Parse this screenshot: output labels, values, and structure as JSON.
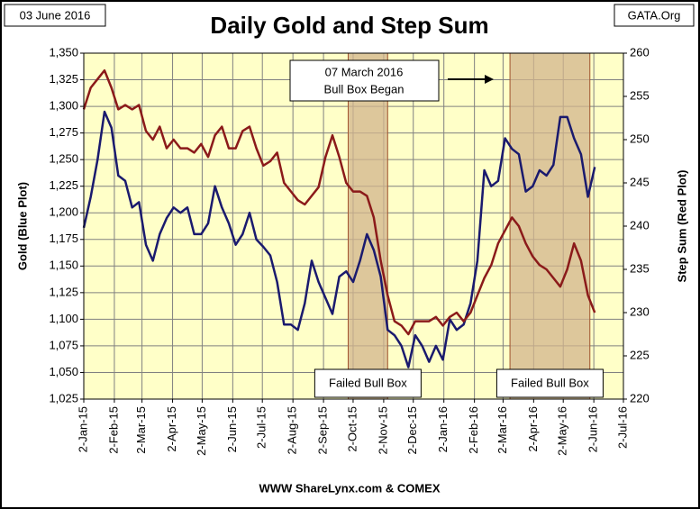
{
  "chart_data": {
    "type": "line",
    "title": "Daily Gold and Step Sum",
    "date_label": "03 June 2016",
    "source_label": "GATA.Org",
    "footer": "WWW ShareLynx.com & COMEX",
    "ylabel": "Gold   (Blue Plot)",
    "y2label": "Step Sum   (Red Plot)",
    "annotation": [
      "07 March 2016",
      "Bull Box Began"
    ],
    "bull_boxes": [
      {
        "start": "2015-09-27",
        "end": "2015-11-06",
        "label": "Failed Bull Box"
      },
      {
        "start": "2016-03-09",
        "end": "2016-05-29",
        "label": "Failed Bull Box"
      }
    ],
    "xlim": [
      "2015-01-02",
      "2016-07-02"
    ],
    "xticks": [
      {
        "value": "2015-01-02",
        "label": "2-Jan-15"
      },
      {
        "value": "2015-02-02",
        "label": "2-Feb-15"
      },
      {
        "value": "2015-03-02",
        "label": "2-Mar-15"
      },
      {
        "value": "2015-04-02",
        "label": "2-Apr-15"
      },
      {
        "value": "2015-05-02",
        "label": "2-May-15"
      },
      {
        "value": "2015-06-02",
        "label": "2-Jun-15"
      },
      {
        "value": "2015-07-02",
        "label": "2-Jul-15"
      },
      {
        "value": "2015-08-02",
        "label": "2-Aug-15"
      },
      {
        "value": "2015-09-02",
        "label": "2-Sep-15"
      },
      {
        "value": "2015-10-02",
        "label": "2-Oct-15"
      },
      {
        "value": "2015-11-02",
        "label": "2-Nov-15"
      },
      {
        "value": "2015-12-02",
        "label": "2-Dec-15"
      },
      {
        "value": "2016-01-02",
        "label": "2-Jan-16"
      },
      {
        "value": "2016-02-02",
        "label": "2-Feb-16"
      },
      {
        "value": "2016-03-02",
        "label": "2-Mar-16"
      },
      {
        "value": "2016-04-02",
        "label": "2-Apr-16"
      },
      {
        "value": "2016-05-02",
        "label": "2-May-16"
      },
      {
        "value": "2016-06-02",
        "label": "2-Jun-16"
      },
      {
        "value": "2016-07-02",
        "label": "2-Jul-16"
      }
    ],
    "ylim": [
      1025,
      1350
    ],
    "yticks": [
      {
        "value": 1025,
        "label": "1,025"
      },
      {
        "value": 1050,
        "label": "1,050"
      },
      {
        "value": 1075,
        "label": "1,075"
      },
      {
        "value": 1100,
        "label": "1,100"
      },
      {
        "value": 1125,
        "label": "1,125"
      },
      {
        "value": 1150,
        "label": "1,150"
      },
      {
        "value": 1175,
        "label": "1,175"
      },
      {
        "value": 1200,
        "label": "1,200"
      },
      {
        "value": 1225,
        "label": "1,225"
      },
      {
        "value": 1250,
        "label": "1,250"
      },
      {
        "value": 1275,
        "label": "1,275"
      },
      {
        "value": 1300,
        "label": "1,300"
      },
      {
        "value": 1325,
        "label": "1,325"
      },
      {
        "value": 1350,
        "label": "1,350"
      }
    ],
    "y2lim": [
      220,
      260
    ],
    "y2ticks": [
      220,
      225,
      230,
      235,
      240,
      245,
      250,
      255,
      260
    ],
    "grid": true,
    "x": [
      "2015-01-02",
      "2015-01-09",
      "2015-01-16",
      "2015-01-23",
      "2015-01-30",
      "2015-02-06",
      "2015-02-13",
      "2015-02-20",
      "2015-02-27",
      "2015-03-06",
      "2015-03-13",
      "2015-03-20",
      "2015-03-27",
      "2015-04-03",
      "2015-04-10",
      "2015-04-17",
      "2015-04-24",
      "2015-05-01",
      "2015-05-08",
      "2015-05-15",
      "2015-05-22",
      "2015-05-29",
      "2015-06-05",
      "2015-06-12",
      "2015-06-19",
      "2015-06-26",
      "2015-07-03",
      "2015-07-10",
      "2015-07-17",
      "2015-07-24",
      "2015-07-31",
      "2015-08-07",
      "2015-08-14",
      "2015-08-21",
      "2015-08-28",
      "2015-09-04",
      "2015-09-11",
      "2015-09-18",
      "2015-09-25",
      "2015-10-02",
      "2015-10-09",
      "2015-10-16",
      "2015-10-23",
      "2015-10-30",
      "2015-11-06",
      "2015-11-13",
      "2015-11-20",
      "2015-11-27",
      "2015-12-04",
      "2015-12-11",
      "2015-12-18",
      "2015-12-25",
      "2016-01-01",
      "2016-01-08",
      "2016-01-15",
      "2016-01-22",
      "2016-01-29",
      "2016-02-05",
      "2016-02-12",
      "2016-02-19",
      "2016-02-26",
      "2016-03-04",
      "2016-03-11",
      "2016-03-18",
      "2016-03-25",
      "2016-04-01",
      "2016-04-08",
      "2016-04-15",
      "2016-04-22",
      "2016-04-29",
      "2016-05-06",
      "2016-05-13",
      "2016-05-20",
      "2016-05-27",
      "2016-06-03"
    ],
    "series": [
      {
        "color": "#1a1a6e",
        "values": [
          1186,
          1215,
          1250,
          1295,
          1280,
          1235,
          1230,
          1205,
          1210,
          1170,
          1155,
          1180,
          1195,
          1205,
          1200,
          1205,
          1180,
          1180,
          1190,
          1225,
          1205,
          1190,
          1170,
          1180,
          1200,
          1175,
          1168,
          1160,
          1135,
          1095,
          1095,
          1090,
          1115,
          1155,
          1135,
          1120,
          1105,
          1140,
          1145,
          1135,
          1155,
          1180,
          1165,
          1140,
          1090,
          1085,
          1075,
          1055,
          1085,
          1075,
          1060,
          1075,
          1062,
          1100,
          1090,
          1095,
          1115,
          1155,
          1240,
          1225,
          1230,
          1270,
          1260,
          1255,
          1220,
          1225,
          1240,
          1235,
          1245,
          1290,
          1290,
          1270,
          1255,
          1215,
          1243
        ]
      },
      {
        "color": "#8b1a1a",
        "axis": "y2",
        "values": [
          253.5,
          256,
          257,
          258,
          256,
          253.5,
          254,
          253.5,
          254,
          251,
          250,
          251.5,
          249,
          250,
          249,
          249,
          248.5,
          249.5,
          248,
          250.5,
          251.5,
          249,
          249,
          251,
          251.5,
          249,
          247,
          247.5,
          248.5,
          245,
          244,
          243,
          242.5,
          243.5,
          244.5,
          248,
          250.5,
          248,
          245,
          244,
          244,
          243.5,
          241,
          236,
          232,
          229,
          228.5,
          227.5,
          229,
          229,
          229,
          229.5,
          228.5,
          229.5,
          230,
          229,
          230,
          232,
          234,
          235.5,
          238,
          239.5,
          241,
          240,
          238,
          236.5,
          235.5,
          235,
          234,
          233,
          235,
          238,
          236,
          232,
          230
        ]
      }
    ]
  }
}
